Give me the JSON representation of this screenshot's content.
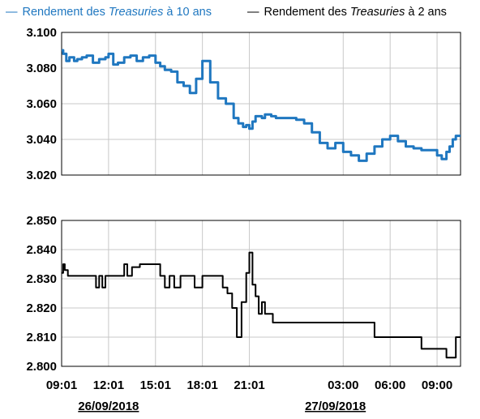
{
  "legend": {
    "s10_prefix": "Rendement des ",
    "s10_italic": "Treasuries",
    "s10_suffix": " à 10 ans",
    "s2_prefix": "Rendement des ",
    "s2_italic": "Treasuries",
    "s2_suffix": "  à 2 ans",
    "dash": "—"
  },
  "colors": {
    "series_10y": "#1f77c0",
    "series_2y": "#000000",
    "grid": "#c8c8c8"
  },
  "chart_data": [
    {
      "type": "line",
      "title": "",
      "ylim": [
        3.02,
        3.1
      ],
      "yticks": [
        "3.100",
        "3.080",
        "3.060",
        "3.040",
        "3.020"
      ],
      "ytick_values": [
        3.1,
        3.08,
        3.06,
        3.04,
        3.02
      ],
      "grid": true,
      "series": [
        {
          "name": "Rendement des Treasuries à 10 ans",
          "x": [
            0,
            0.1,
            0.3,
            0.5,
            0.8,
            1.0,
            1.3,
            1.6,
            2.0,
            2.4,
            2.8,
            3.0,
            3.3,
            3.6,
            4.0,
            4.4,
            4.8,
            5.2,
            5.6,
            6.0,
            6.3,
            6.6,
            7.0,
            7.4,
            7.8,
            8.2,
            8.6,
            9.0,
            9.5,
            10.0,
            10.5,
            11.0,
            11.3,
            11.6,
            11.8,
            12.0,
            12.2,
            12.4,
            12.6,
            12.8,
            13.0,
            13.2,
            13.4,
            13.7,
            14.0,
            14.5,
            15.0,
            15.5,
            16.0,
            16.5,
            17.0,
            17.5,
            18.0,
            18.5,
            19.0,
            19.5,
            20.0,
            20.5,
            21.0,
            21.5,
            22.0,
            22.5,
            23.0,
            23.5,
            24.0,
            24.3,
            24.6,
            24.8,
            25.0,
            25.2,
            25.5
          ],
          "values": [
            3.09,
            3.088,
            3.084,
            3.086,
            3.084,
            3.085,
            3.086,
            3.087,
            3.083,
            3.085,
            3.086,
            3.088,
            3.082,
            3.083,
            3.086,
            3.087,
            3.084,
            3.086,
            3.087,
            3.083,
            3.081,
            3.079,
            3.078,
            3.072,
            3.07,
            3.066,
            3.074,
            3.084,
            3.072,
            3.063,
            3.06,
            3.052,
            3.049,
            3.047,
            3.048,
            3.046,
            3.05,
            3.053,
            3.053,
            3.052,
            3.054,
            3.054,
            3.053,
            3.052,
            3.052,
            3.052,
            3.051,
            3.049,
            3.044,
            3.038,
            3.035,
            3.038,
            3.033,
            3.031,
            3.028,
            3.032,
            3.036,
            3.04,
            3.042,
            3.039,
            3.036,
            3.035,
            3.034,
            3.034,
            3.031,
            3.029,
            3.033,
            3.036,
            3.04,
            3.042,
            3.042
          ]
        }
      ]
    },
    {
      "type": "line",
      "title": "",
      "ylim": [
        2.8,
        2.85
      ],
      "yticks": [
        "2.850",
        "2.840",
        "2.830",
        "2.820",
        "2.810",
        "2.800"
      ],
      "ytick_values": [
        2.85,
        2.84,
        2.83,
        2.82,
        2.81,
        2.8
      ],
      "grid": true,
      "xtick_labels": [
        "09:01",
        "12:01",
        "15:01",
        "18:01",
        "21:01",
        "03:00",
        "06:00",
        "09:00"
      ],
      "xtick_positions": [
        0,
        3,
        6,
        9,
        12,
        18,
        21,
        24
      ],
      "date_labels": [
        "26/09/2018",
        "27/09/2018"
      ],
      "date_positions": [
        3,
        17.5
      ],
      "series": [
        {
          "name": "Rendement des Treasuries à 2 ans",
          "x": [
            0,
            0.1,
            0.2,
            0.4,
            2.0,
            2.2,
            2.4,
            2.6,
            2.8,
            3.0,
            3.5,
            4.0,
            4.2,
            4.5,
            5.0,
            5.5,
            6.0,
            6.3,
            6.6,
            6.9,
            7.2,
            7.6,
            8.0,
            8.5,
            9.0,
            9.5,
            10.0,
            10.3,
            10.6,
            10.9,
            11.2,
            11.5,
            11.8,
            12.0,
            12.2,
            12.4,
            12.6,
            12.8,
            13.0,
            13.5,
            14.0,
            14.5,
            15.0,
            15.5,
            16.0,
            16.5,
            17.0,
            17.5,
            18.0,
            18.5,
            19.0,
            19.5,
            20.0,
            20.5,
            21.0,
            21.5,
            22.0,
            22.5,
            23.0,
            23.5,
            24.0,
            24.3,
            24.6,
            24.9,
            25.2,
            25.5
          ],
          "values": [
            2.832,
            2.835,
            2.833,
            2.831,
            2.831,
            2.827,
            2.831,
            2.827,
            2.831,
            2.831,
            2.831,
            2.835,
            2.831,
            2.834,
            2.835,
            2.835,
            2.835,
            2.831,
            2.827,
            2.831,
            2.827,
            2.831,
            2.831,
            2.827,
            2.831,
            2.831,
            2.831,
            2.827,
            2.825,
            2.82,
            2.81,
            2.822,
            2.832,
            2.839,
            2.828,
            2.824,
            2.818,
            2.822,
            2.818,
            2.815,
            2.815,
            2.815,
            2.815,
            2.815,
            2.815,
            2.815,
            2.815,
            2.815,
            2.815,
            2.815,
            2.815,
            2.815,
            2.81,
            2.81,
            2.81,
            2.81,
            2.81,
            2.81,
            2.806,
            2.806,
            2.806,
            2.806,
            2.803,
            2.803,
            2.81,
            2.81
          ]
        }
      ]
    }
  ]
}
